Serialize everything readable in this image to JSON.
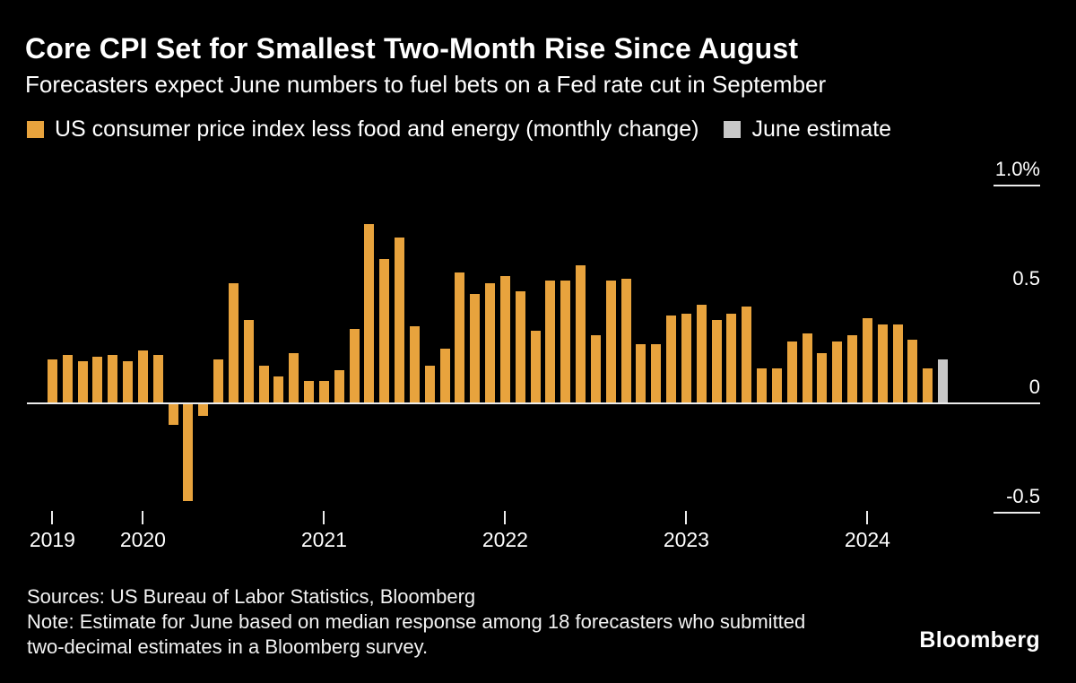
{
  "header": {
    "title": "Core CPI Set for Smallest Two-Month Rise Since August",
    "subtitle": "Forecasters expect June numbers to fuel bets on a Fed rate cut in September"
  },
  "legend": [
    {
      "label": "US consumer price index less food and energy (monthly change)",
      "color": "#E8A33D"
    },
    {
      "label": "June estimate",
      "color": "#C8C8C8"
    }
  ],
  "chart_data": {
    "type": "bar",
    "title": "Core CPI Set for Smallest Two-Month Rise Since August",
    "xlabel": "",
    "ylabel": "Monthly change (%)",
    "ylim": [
      -0.62,
      1.15
    ],
    "grid": "minimal",
    "legend_position": "top",
    "series_name": "US consumer price index less food and energy (monthly change)",
    "series_color": "#E8A33D",
    "estimate_name": "June estimate",
    "estimate_color": "#C8C8C8",
    "estimate_indices": [
      59
    ],
    "x": [
      "Jul 2019",
      "Aug 2019",
      "Sep 2019",
      "Oct 2019",
      "Nov 2019",
      "Dec 2019",
      "Jan 2020",
      "Feb 2020",
      "Mar 2020",
      "Apr 2020",
      "May 2020",
      "Jun 2020",
      "Jul 2020",
      "Aug 2020",
      "Sep 2020",
      "Oct 2020",
      "Nov 2020",
      "Dec 2020",
      "Jan 2021",
      "Feb 2021",
      "Mar 2021",
      "Apr 2021",
      "May 2021",
      "Jun 2021",
      "Jul 2021",
      "Aug 2021",
      "Sep 2021",
      "Oct 2021",
      "Nov 2021",
      "Dec 2021",
      "Jan 2022",
      "Feb 2022",
      "Mar 2022",
      "Apr 2022",
      "May 2022",
      "Jun 2022",
      "Jul 2022",
      "Aug 2022",
      "Sep 2022",
      "Oct 2022",
      "Nov 2022",
      "Dec 2022",
      "Jan 2023",
      "Feb 2023",
      "Mar 2023",
      "Apr 2023",
      "May 2023",
      "Jun 2023",
      "Jul 2023",
      "Aug 2023",
      "Sep 2023",
      "Oct 2023",
      "Nov 2023",
      "Dec 2023",
      "Jan 2024",
      "Feb 2024",
      "Mar 2024",
      "Apr 2024",
      "May 2024",
      "Jun 2024 (est)"
    ],
    "values": [
      0.2,
      0.22,
      0.19,
      0.21,
      0.22,
      0.19,
      0.24,
      0.22,
      -0.1,
      -0.45,
      -0.06,
      0.2,
      0.55,
      0.38,
      0.17,
      0.12,
      0.23,
      0.1,
      0.1,
      0.15,
      0.34,
      0.82,
      0.66,
      0.76,
      0.35,
      0.17,
      0.25,
      0.6,
      0.5,
      0.55,
      0.58,
      0.51,
      0.33,
      0.56,
      0.56,
      0.63,
      0.31,
      0.56,
      0.57,
      0.27,
      0.27,
      0.4,
      0.41,
      0.45,
      0.38,
      0.41,
      0.44,
      0.16,
      0.16,
      0.28,
      0.32,
      0.23,
      0.28,
      0.31,
      0.39,
      0.36,
      0.36,
      0.29,
      0.16,
      0.2
    ],
    "y_ticks": [
      {
        "label": "1.0%",
        "value": 1.0,
        "stub": true
      },
      {
        "label": "0.5",
        "value": 0.5,
        "stub": false
      },
      {
        "label": "0",
        "value": 0.0,
        "stub": false
      },
      {
        "label": "-0.5",
        "value": -0.5,
        "stub": true
      }
    ],
    "x_ticks": [
      {
        "label": "2019",
        "month_index": 0
      },
      {
        "label": "2020",
        "month_index": 6
      },
      {
        "label": "2021",
        "month_index": 18
      },
      {
        "label": "2022",
        "month_index": 30
      },
      {
        "label": "2023",
        "month_index": 42
      },
      {
        "label": "2024",
        "month_index": 54
      }
    ]
  },
  "footer": {
    "sources": "Sources: US Bureau of Labor Statistics, Bloomberg",
    "note": "Note: Estimate for June based on median response among 18 forecasters who submitted two-decimal estimates in a Bloomberg survey.",
    "brand": "Bloomberg"
  }
}
